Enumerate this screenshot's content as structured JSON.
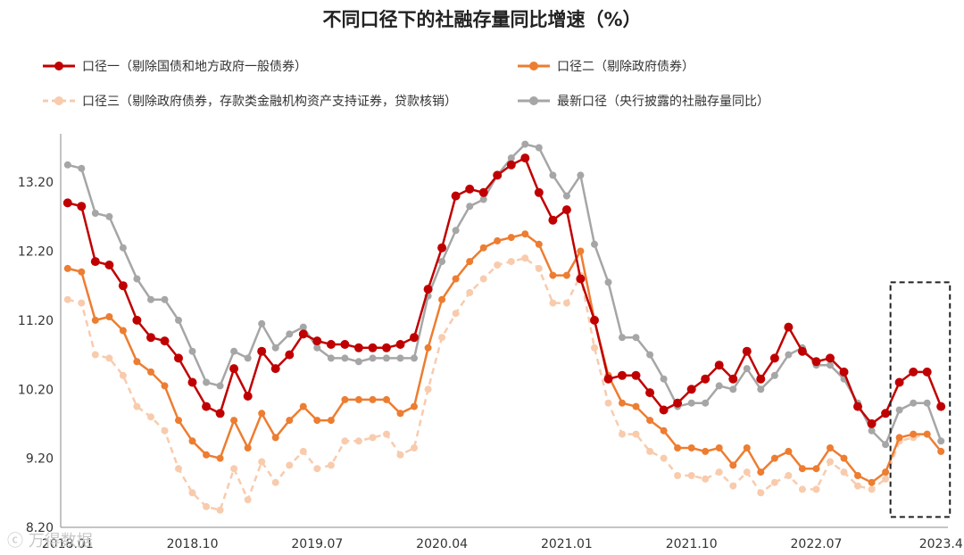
{
  "chart_data": {
    "type": "line",
    "title": "不同口径下的社融存量同比增速（%）",
    "xlabel": "",
    "ylabel": "",
    "ylim": [
      8.2,
      13.9
    ],
    "yticks": [
      "13.20",
      "12.20",
      "11.20",
      "10.20",
      "9.20",
      "8.20"
    ],
    "x_tick_labels": [
      "2018.01",
      "2018.10",
      "2019.07",
      "2020.04",
      "2021.01",
      "2021.10",
      "2022.07",
      "2023.4"
    ],
    "x_tick_index": [
      0,
      9,
      18,
      27,
      36,
      45,
      54,
      63
    ],
    "legend_placement": "top",
    "highlight_box": {
      "from_index": 60,
      "to_index": 63,
      "y_top": 11.75,
      "y_bottom": 8.35
    },
    "series": [
      {
        "name": "口径一（剔除国债和地方政府一般债券）",
        "color": "#c00000",
        "style": "solid",
        "values": [
          12.9,
          12.85,
          12.05,
          12.0,
          11.7,
          11.2,
          10.95,
          10.9,
          10.65,
          10.3,
          9.95,
          9.85,
          10.5,
          10.1,
          10.75,
          10.5,
          10.7,
          11.0,
          10.9,
          10.85,
          10.85,
          10.8,
          10.8,
          10.8,
          10.85,
          10.95,
          11.65,
          12.25,
          13.0,
          13.1,
          13.05,
          13.3,
          13.45,
          13.55,
          13.05,
          12.65,
          12.8,
          11.8,
          11.2,
          10.35,
          10.4,
          10.4,
          10.15,
          9.9,
          10.0,
          10.2,
          10.35,
          10.55,
          10.35,
          10.75,
          10.35,
          10.65,
          11.1,
          10.75,
          10.6,
          10.65,
          10.45,
          9.95,
          9.7,
          9.85,
          10.3,
          10.45,
          10.45,
          9.95
        ]
      },
      {
        "name": "口径二（剔除政府债券）",
        "color": "#ed7d31",
        "style": "solid",
        "values": [
          11.95,
          11.9,
          11.2,
          11.25,
          11.05,
          10.6,
          10.45,
          10.25,
          9.75,
          9.45,
          9.25,
          9.2,
          9.75,
          9.35,
          9.85,
          9.5,
          9.75,
          9.95,
          9.75,
          9.75,
          10.05,
          10.05,
          10.05,
          10.05,
          9.85,
          9.95,
          10.8,
          11.5,
          11.8,
          12.05,
          12.25,
          12.35,
          12.4,
          12.45,
          12.3,
          11.85,
          11.85,
          12.2,
          11.2,
          10.4,
          10.0,
          9.95,
          9.75,
          9.6,
          9.35,
          9.35,
          9.3,
          9.35,
          9.1,
          9.35,
          9.0,
          9.2,
          9.3,
          9.05,
          9.05,
          9.35,
          9.2,
          8.95,
          8.85,
          9.0,
          9.5,
          9.55,
          9.55,
          9.3
        ]
      },
      {
        "name": "口径三（剔除政府债券，存款类金融机构资产支持证券，贷款核销）",
        "color": "#f8cbad",
        "style": "dashed",
        "values": [
          11.5,
          11.45,
          10.7,
          10.65,
          10.4,
          9.95,
          9.8,
          9.6,
          9.05,
          8.7,
          8.5,
          8.45,
          9.05,
          8.6,
          9.15,
          8.85,
          9.1,
          9.3,
          9.05,
          9.1,
          9.45,
          9.45,
          9.5,
          9.55,
          9.25,
          9.35,
          10.2,
          10.95,
          11.3,
          11.6,
          11.8,
          12.0,
          12.05,
          12.1,
          11.95,
          11.45,
          11.45,
          11.85,
          10.8,
          10.0,
          9.55,
          9.55,
          9.3,
          9.2,
          8.95,
          8.95,
          8.9,
          9.0,
          8.8,
          9.0,
          8.7,
          8.85,
          8.95,
          8.75,
          8.75,
          9.15,
          9.0,
          8.8,
          8.75,
          8.9,
          9.45,
          9.5,
          9.55,
          9.3
        ]
      },
      {
        "name": "最新口径（央行披露的社融存量同比）",
        "color": "#a6a6a6",
        "style": "solid",
        "values": [
          13.45,
          13.4,
          12.75,
          12.7,
          12.25,
          11.8,
          11.5,
          11.5,
          11.2,
          10.75,
          10.3,
          10.25,
          10.75,
          10.65,
          11.15,
          10.8,
          11.0,
          11.1,
          10.8,
          10.65,
          10.65,
          10.6,
          10.65,
          10.65,
          10.65,
          10.65,
          11.55,
          12.05,
          12.5,
          12.85,
          12.95,
          13.3,
          13.55,
          13.75,
          13.7,
          13.3,
          13.0,
          13.3,
          12.3,
          11.75,
          10.95,
          10.95,
          10.7,
          10.35,
          9.95,
          10.0,
          10.0,
          10.25,
          10.2,
          10.5,
          10.2,
          10.4,
          10.7,
          10.8,
          10.55,
          10.55,
          10.35,
          10.0,
          9.6,
          9.4,
          9.9,
          10.0,
          10.0,
          9.45
        ]
      }
    ]
  },
  "watermark": "ⓒ 万得数据"
}
